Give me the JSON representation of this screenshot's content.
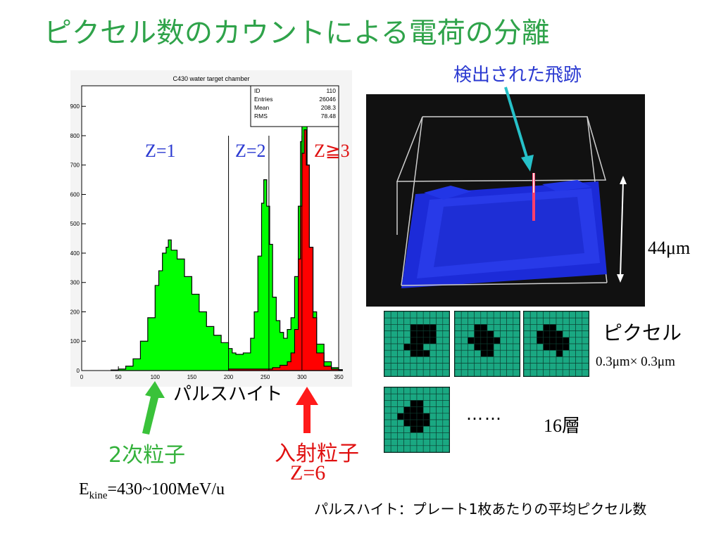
{
  "slide": {
    "title": "ピクセル数のカウントによる電荷の分離",
    "detected_track_label": "検出された飛跡",
    "thickness_label": "44μm",
    "pixel_label": "ピクセル",
    "pixel_size_label": "0.3μm× 0.3μm",
    "dots_label": "……",
    "layers_label": "16層",
    "pulse_height_label": "パルスハイト",
    "secondary_label": "2次粒子",
    "incident_label": "入射粒子",
    "incident_z_label": "Z=6",
    "energy_prefix": "E",
    "energy_sub": "kine",
    "energy_value": "=430~100MeV/u",
    "footnote": "パルスハイト：プレート1枚あたりの平均ピクセル数",
    "z_labels": [
      "Z=1",
      "Z=2",
      "Z≧3"
    ],
    "colors": {
      "title": "#2fa34a",
      "green_hist": "#00ff00",
      "red_hist": "#ff0000",
      "blue_text": "#2b3ad1",
      "teal_pixel": "#1aa882"
    }
  },
  "chart_data": {
    "type": "bar",
    "title": "C430 water target chamber",
    "xlabel": "",
    "ylabel": "",
    "xlim": [
      0,
      350
    ],
    "ylim": [
      0,
      970
    ],
    "x_ticks": [
      0,
      50,
      100,
      150,
      200,
      250,
      300,
      350
    ],
    "y_ticks": [
      0,
      100,
      200,
      300,
      400,
      500,
      600,
      700,
      800,
      900
    ],
    "cut_lines_x": [
      200,
      255,
      300
    ],
    "stats": [
      {
        "label": "ID",
        "value": "110"
      },
      {
        "label": "Entries",
        "value": "26046"
      },
      {
        "label": "Mean",
        "value": "208.3"
      },
      {
        "label": "RMS",
        "value": "78.48"
      }
    ],
    "series": [
      {
        "name": "",
        "color": "#00ff00",
        "points": [
          [
            40,
            2
          ],
          [
            50,
            5
          ],
          [
            60,
            15
          ],
          [
            70,
            40
          ],
          [
            80,
            100
          ],
          [
            90,
            180
          ],
          [
            100,
            290
          ],
          [
            105,
            340
          ],
          [
            110,
            400
          ],
          [
            115,
            420
          ],
          [
            118,
            445
          ],
          [
            122,
            410
          ],
          [
            130,
            380
          ],
          [
            140,
            320
          ],
          [
            150,
            260
          ],
          [
            160,
            200
          ],
          [
            170,
            150
          ],
          [
            180,
            120
          ],
          [
            190,
            95
          ],
          [
            200,
            75
          ],
          [
            205,
            60
          ],
          [
            210,
            55
          ],
          [
            220,
            60
          ],
          [
            230,
            110
          ],
          [
            235,
            200
          ],
          [
            240,
            390
          ],
          [
            245,
            570
          ],
          [
            248,
            650
          ],
          [
            252,
            560
          ],
          [
            256,
            430
          ],
          [
            260,
            250
          ],
          [
            265,
            170
          ],
          [
            270,
            130
          ],
          [
            275,
            110
          ],
          [
            280,
            140
          ],
          [
            285,
            180
          ],
          [
            290,
            320
          ],
          [
            295,
            560
          ],
          [
            298,
            780
          ],
          [
            300,
            860
          ],
          [
            303,
            870
          ],
          [
            307,
            700
          ],
          [
            310,
            420
          ],
          [
            315,
            200
          ],
          [
            320,
            90
          ],
          [
            330,
            30
          ],
          [
            340,
            10
          ],
          [
            350,
            3
          ]
        ]
      },
      {
        "name": "",
        "color": "#ff0000",
        "points": [
          [
            200,
            5
          ],
          [
            230,
            5
          ],
          [
            260,
            10
          ],
          [
            270,
            18
          ],
          [
            280,
            30
          ],
          [
            285,
            60
          ],
          [
            290,
            140
          ],
          [
            295,
            380
          ],
          [
            298,
            560
          ],
          [
            300,
            740
          ],
          [
            303,
            820
          ],
          [
            306,
            700
          ],
          [
            310,
            420
          ],
          [
            315,
            180
          ],
          [
            320,
            60
          ],
          [
            330,
            15
          ],
          [
            340,
            5
          ],
          [
            350,
            2
          ]
        ]
      }
    ]
  }
}
